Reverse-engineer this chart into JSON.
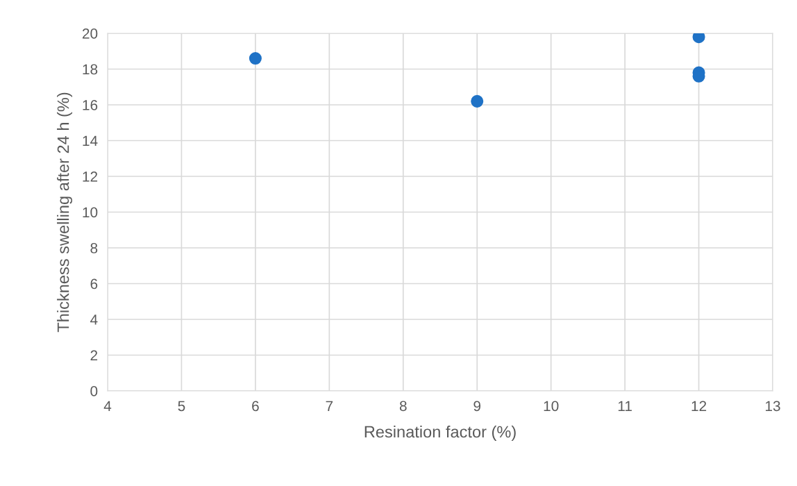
{
  "chart_data": {
    "type": "scatter",
    "xlabel": "Resination factor (%)",
    "ylabel": "Thickness swelling after 24 h (%)",
    "x": [
      6,
      9,
      12,
      12,
      12
    ],
    "series": [
      {
        "color": "#1f72c6",
        "values": [
          18.6,
          16.2,
          19.8,
          17.8,
          17.6
        ]
      }
    ],
    "xlim": [
      4,
      13
    ],
    "xticks": [
      4,
      5,
      6,
      7,
      8,
      9,
      10,
      11,
      12,
      13
    ],
    "ylim": [
      0,
      20
    ],
    "yticks": [
      0,
      2,
      4,
      6,
      8,
      10,
      12,
      14,
      16,
      18,
      20
    ],
    "grid": true,
    "marker": "circle",
    "legend": false
  }
}
